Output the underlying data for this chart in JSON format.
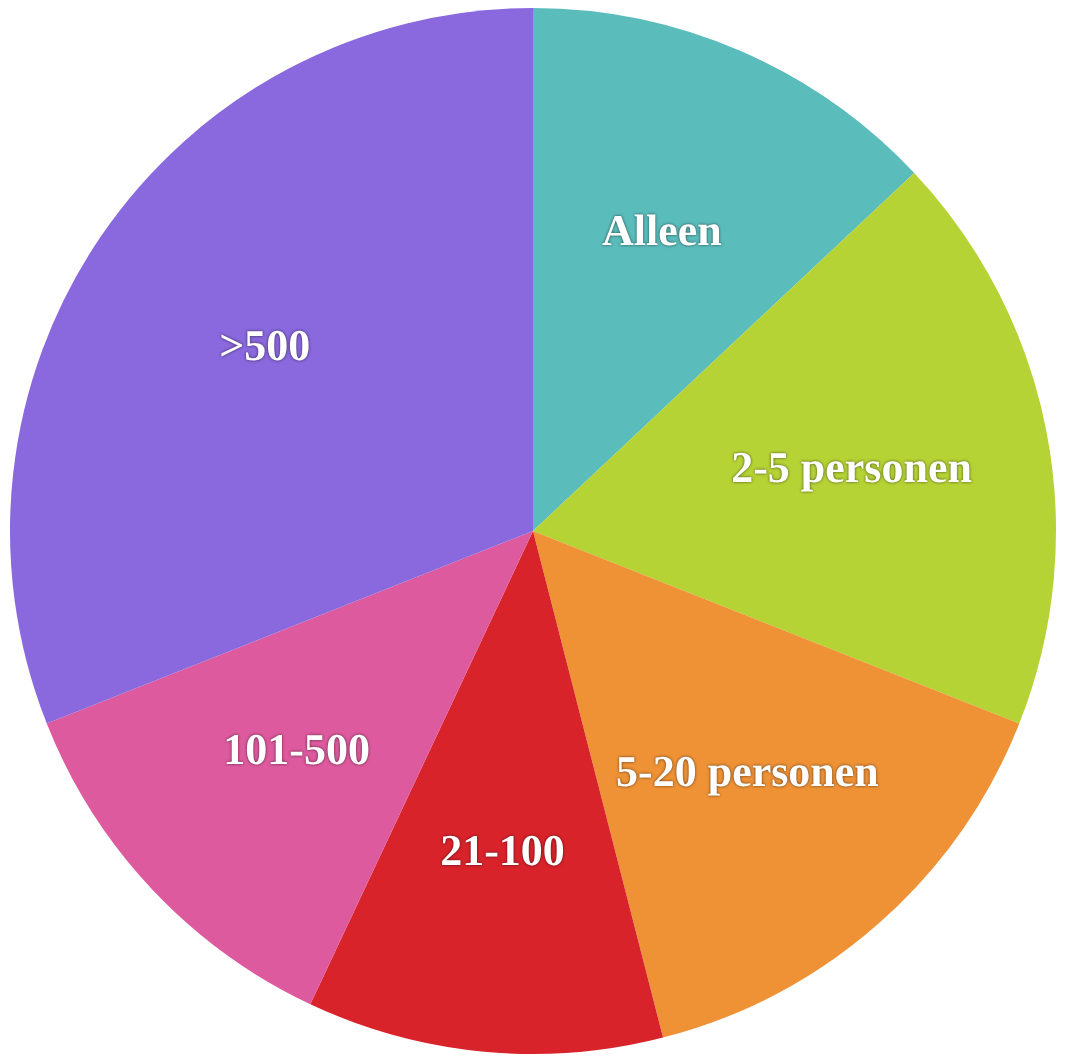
{
  "chart_data": {
    "type": "pie",
    "categories": [
      "Alleen",
      "2-5 personen",
      "5-20 personen",
      "21-100",
      "101-500",
      ">500"
    ],
    "values": [
      13,
      18,
      15,
      11,
      12,
      31
    ],
    "colors": [
      "#5bbcbc",
      "#b5d334",
      "#ef9236",
      "#d9232b",
      "#dd5a9e",
      "#8a68dd"
    ],
    "legend": false
  }
}
